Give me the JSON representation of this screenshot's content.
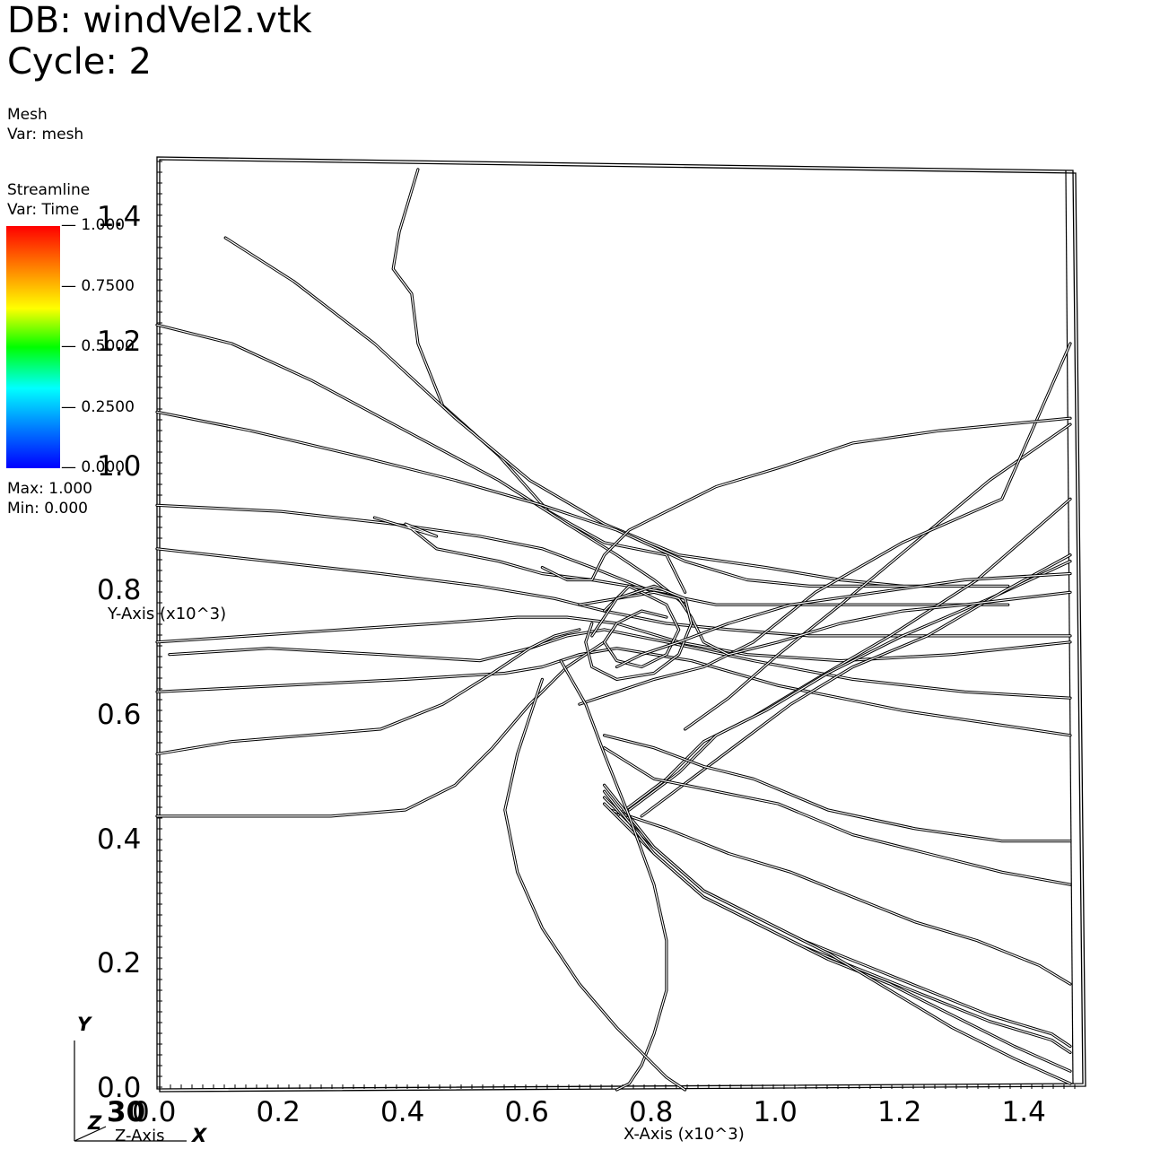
{
  "header": {
    "db": "DB: windVel2.vtk",
    "cycle": "Cycle: 2"
  },
  "mesh_legend": {
    "plot": "Mesh",
    "var": "Var: mesh"
  },
  "streamline_legend": {
    "plot": "Streamline",
    "var": "Var: Time",
    "ticks": [
      "1.000",
      "0.7500",
      "0.5000",
      "0.2500",
      "0.000"
    ],
    "max": "Max:  1.000",
    "min": "Min:  0.000",
    "colors": [
      "#ff0000",
      "#ff8000",
      "#ffff00",
      "#00ff00",
      "#00ffff",
      "#0080ff",
      "#0000ff"
    ]
  },
  "triad": {
    "y": "Y",
    "z": "Z",
    "x": "X"
  },
  "chart_data": {
    "type": "line",
    "title": "",
    "xlabel": "X-Axis (x10^3)",
    "ylabel": "Y-Axis (x10^3)",
    "zlabel": "Z-Axis",
    "xlim": [
      0.0,
      1.47
    ],
    "ylim": [
      0.0,
      1.5
    ],
    "x_ticks": [
      "0.0",
      "0.2",
      "0.4",
      "0.6",
      "0.8",
      "1.0",
      "1.2",
      "1.4"
    ],
    "y_ticks": [
      "0.0",
      "0.2",
      "0.4",
      "0.6",
      "0.8",
      "1.0",
      "1.2",
      "1.4"
    ],
    "z_tick": "30",
    "line_color": "#000000",
    "series": [
      {
        "x": [
          0.42,
          0.39,
          0.38,
          0.41,
          0.42,
          0.46,
          0.55,
          0.63,
          0.72,
          0.82,
          0.85
        ],
        "y": [
          1.48,
          1.38,
          1.32,
          1.28,
          1.2,
          1.1,
          1.02,
          0.93,
          0.88,
          0.86,
          0.8
        ]
      },
      {
        "x": [
          0.11,
          0.22,
          0.35,
          0.48,
          0.6,
          0.72,
          0.84,
          0.98,
          1.1,
          1.2
        ],
        "y": [
          1.37,
          1.3,
          1.2,
          1.08,
          0.98,
          0.91,
          0.86,
          0.84,
          0.82,
          0.81
        ]
      },
      {
        "x": [
          0.0,
          0.12,
          0.25,
          0.4,
          0.55,
          0.66,
          0.74,
          0.8,
          0.85
        ],
        "y": [
          1.23,
          1.2,
          1.14,
          1.06,
          0.98,
          0.91,
          0.86,
          0.82,
          0.78
        ]
      },
      {
        "x": [
          0.0,
          0.15,
          0.32,
          0.48,
          0.62,
          0.74,
          0.85,
          0.95,
          1.05,
          1.2,
          1.37
        ],
        "y": [
          1.09,
          1.06,
          1.02,
          0.98,
          0.94,
          0.9,
          0.85,
          0.82,
          0.81,
          0.81,
          0.81
        ]
      },
      {
        "x": [
          0.0,
          0.2,
          0.38,
          0.52,
          0.62,
          0.7,
          0.8,
          0.9,
          1.05,
          1.2,
          1.37
        ],
        "y": [
          0.94,
          0.93,
          0.91,
          0.89,
          0.87,
          0.84,
          0.8,
          0.78,
          0.78,
          0.78,
          0.78
        ]
      },
      {
        "x": [
          0.0,
          0.18,
          0.36,
          0.52,
          0.64,
          0.72,
          0.82,
          0.92,
          1.05,
          1.2,
          1.47
        ],
        "y": [
          0.87,
          0.85,
          0.83,
          0.81,
          0.79,
          0.77,
          0.75,
          0.74,
          0.73,
          0.73,
          0.73
        ]
      },
      {
        "x": [
          0.35,
          0.45,
          0.4,
          0.45,
          0.55,
          0.62,
          0.7,
          0.82
        ],
        "y": [
          0.92,
          0.89,
          0.91,
          0.87,
          0.85,
          0.83,
          0.82,
          0.8
        ]
      },
      {
        "x": [
          0.0,
          0.15,
          0.3,
          0.45,
          0.58,
          0.66,
          0.74,
          0.84,
          0.95,
          1.1,
          1.28,
          1.47
        ],
        "y": [
          0.72,
          0.73,
          0.74,
          0.75,
          0.76,
          0.76,
          0.75,
          0.72,
          0.7,
          0.69,
          0.7,
          0.72
        ]
      },
      {
        "x": [
          0.02,
          0.18,
          0.36,
          0.52,
          0.6,
          0.66,
          0.72,
          0.82,
          0.96,
          1.12,
          1.3,
          1.47
        ],
        "y": [
          0.7,
          0.71,
          0.7,
          0.69,
          0.71,
          0.73,
          0.74,
          0.72,
          0.69,
          0.66,
          0.64,
          0.63
        ]
      },
      {
        "x": [
          0.0,
          0.2,
          0.4,
          0.56,
          0.62,
          0.68,
          0.74,
          0.86,
          1.0,
          1.2,
          1.47
        ],
        "y": [
          0.64,
          0.65,
          0.66,
          0.67,
          0.68,
          0.7,
          0.71,
          0.69,
          0.65,
          0.61,
          0.57
        ]
      },
      {
        "x": [
          0.0,
          0.12,
          0.24,
          0.36,
          0.46,
          0.54,
          0.6,
          0.64,
          0.68
        ],
        "y": [
          0.54,
          0.56,
          0.57,
          0.58,
          0.62,
          0.67,
          0.71,
          0.73,
          0.74
        ]
      },
      {
        "x": [
          0.0,
          0.14,
          0.28,
          0.4,
          0.48,
          0.54,
          0.6,
          0.66,
          0.72
        ],
        "y": [
          0.44,
          0.44,
          0.44,
          0.45,
          0.49,
          0.55,
          0.62,
          0.68,
          0.72
        ]
      },
      {
        "x": [
          0.74,
          0.82,
          0.88,
          0.96,
          1.06,
          1.18,
          1.32,
          1.47
        ],
        "y": [
          0.44,
          0.5,
          0.56,
          0.6,
          0.66,
          0.73,
          0.82,
          0.95
        ]
      },
      {
        "x": [
          0.76,
          0.84,
          0.9,
          0.98,
          1.08,
          1.2,
          1.34,
          1.47
        ],
        "y": [
          0.45,
          0.51,
          0.57,
          0.61,
          0.67,
          0.73,
          0.79,
          0.85
        ]
      },
      {
        "x": [
          0.78,
          0.86,
          0.94,
          1.02,
          1.12,
          1.24,
          1.36,
          1.47
        ],
        "y": [
          0.44,
          0.5,
          0.56,
          0.62,
          0.68,
          0.73,
          0.8,
          0.86
        ]
      },
      {
        "x": [
          0.85,
          0.92,
          1.0,
          1.1,
          1.22,
          1.34,
          1.47
        ],
        "y": [
          0.58,
          0.63,
          0.7,
          0.78,
          0.88,
          0.98,
          1.07
        ]
      },
      {
        "x": [
          0.68,
          0.74,
          0.8,
          0.88,
          0.96,
          1.06,
          1.2,
          1.36,
          1.47
        ],
        "y": [
          0.62,
          0.64,
          0.66,
          0.68,
          0.72,
          0.8,
          0.88,
          0.95,
          1.2
        ]
      },
      {
        "x": [
          0.72,
          0.8,
          0.88,
          0.96,
          1.08,
          1.22,
          1.36,
          1.47
        ],
        "y": [
          0.57,
          0.55,
          0.52,
          0.5,
          0.45,
          0.42,
          0.4,
          0.4
        ]
      },
      {
        "x": [
          0.72,
          0.8,
          0.9,
          1.0,
          1.12,
          1.24,
          1.36,
          1.47
        ],
        "y": [
          0.55,
          0.5,
          0.48,
          0.46,
          0.41,
          0.38,
          0.35,
          0.33
        ]
      },
      {
        "x": [
          0.73,
          0.82,
          0.92,
          1.02,
          1.12,
          1.22,
          1.32,
          1.42,
          1.47
        ],
        "y": [
          0.45,
          0.42,
          0.38,
          0.35,
          0.31,
          0.27,
          0.24,
          0.2,
          0.17
        ]
      },
      {
        "x": [
          0.72,
          0.8,
          0.88,
          0.96,
          1.04,
          1.14,
          1.24,
          1.34,
          1.44,
          1.47
        ],
        "y": [
          0.46,
          0.38,
          0.31,
          0.27,
          0.23,
          0.19,
          0.15,
          0.11,
          0.08,
          0.06
        ]
      },
      {
        "x": [
          0.72,
          0.8,
          0.88,
          0.96,
          1.04,
          1.14,
          1.24,
          1.34,
          1.44,
          1.47
        ],
        "y": [
          0.47,
          0.39,
          0.32,
          0.28,
          0.24,
          0.2,
          0.16,
          0.12,
          0.09,
          0.07
        ]
      },
      {
        "x": [
          0.72,
          0.8,
          0.88,
          0.98,
          1.08,
          1.18,
          1.28,
          1.38,
          1.47
        ],
        "y": [
          0.48,
          0.38,
          0.31,
          0.26,
          0.21,
          0.17,
          0.12,
          0.07,
          0.03
        ]
      },
      {
        "x": [
          0.72,
          0.8,
          0.88,
          0.98,
          1.08,
          1.18,
          1.28,
          1.38,
          1.47
        ],
        "y": [
          0.49,
          0.39,
          0.32,
          0.27,
          0.22,
          0.16,
          0.1,
          0.05,
          0.01
        ]
      },
      {
        "x": [
          0.65,
          0.69,
          0.72,
          0.76,
          0.8,
          0.82,
          0.82,
          0.8,
          0.78,
          0.76,
          0.74
        ],
        "y": [
          0.69,
          0.62,
          0.54,
          0.44,
          0.33,
          0.24,
          0.16,
          0.09,
          0.04,
          0.01,
          0.0
        ]
      },
      {
        "x": [
          0.62,
          0.6,
          0.58,
          0.56,
          0.58,
          0.62,
          0.68,
          0.74,
          0.82,
          0.85
        ],
        "y": [
          0.66,
          0.6,
          0.54,
          0.45,
          0.35,
          0.26,
          0.17,
          0.1,
          0.02,
          0.0
        ]
      },
      {
        "x": [
          0.68,
          0.74,
          0.8,
          0.84,
          0.86,
          0.88,
          0.92,
          1.0,
          1.1,
          1.2,
          1.3,
          1.47
        ],
        "y": [
          0.78,
          0.79,
          0.8,
          0.79,
          0.76,
          0.72,
          0.7,
          0.72,
          0.75,
          0.77,
          0.78,
          0.8
        ]
      },
      {
        "x": [
          0.72,
          0.76,
          0.82,
          0.84,
          0.82,
          0.78,
          0.74,
          0.72,
          0.74,
          0.78,
          0.82
        ],
        "y": [
          0.77,
          0.81,
          0.78,
          0.74,
          0.7,
          0.68,
          0.69,
          0.72,
          0.75,
          0.77,
          0.76
        ]
      },
      {
        "x": [
          0.7,
          0.74,
          0.8,
          0.85,
          0.86,
          0.84,
          0.8,
          0.74,
          0.7,
          0.69,
          0.7
        ],
        "y": [
          0.73,
          0.79,
          0.81,
          0.79,
          0.75,
          0.7,
          0.67,
          0.66,
          0.68,
          0.72,
          0.75
        ]
      },
      {
        "x": [
          0.62,
          0.66,
          0.7,
          0.72,
          0.76,
          0.82,
          0.9,
          1.0,
          1.12,
          1.26,
          1.47
        ],
        "y": [
          0.84,
          0.82,
          0.82,
          0.86,
          0.9,
          0.93,
          0.97,
          1.0,
          1.04,
          1.06,
          1.08
        ]
      },
      {
        "x": [
          0.74,
          0.78,
          0.84,
          0.92,
          1.02,
          1.16,
          1.3,
          1.47
        ],
        "y": [
          0.68,
          0.7,
          0.72,
          0.75,
          0.78,
          0.8,
          0.82,
          0.83
        ]
      }
    ]
  }
}
